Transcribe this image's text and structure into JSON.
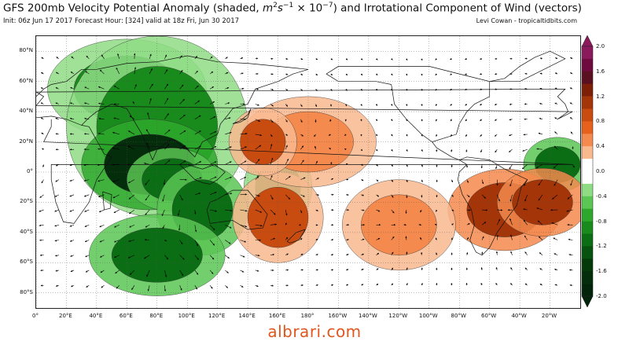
{
  "header": {
    "title_prefix": "GFS 200mb Velocity Potential Anomaly (shaded, ",
    "title_unit_base": "m",
    "title_unit_exp1": "2",
    "title_unit_mid": "s",
    "title_unit_exp2": "−1",
    "title_unit_factor": " × 10",
    "title_unit_exp3": "−7",
    "title_suffix": ") and Irrotational Component of Wind (vectors)",
    "subtitle": "Init: 06z Jun 17 2017 Forecast Hour: [324] valid at 18z Fri, Jun 30 2017",
    "credit": "Levi Cowan - tropicaltidbits.com"
  },
  "map": {
    "lat_labels": [
      "80°N",
      "60°N",
      "40°N",
      "20°N",
      "0°",
      "20°S",
      "40°S",
      "60°S",
      "80°S"
    ],
    "lat_values": [
      80,
      60,
      40,
      20,
      0,
      -20,
      -40,
      -60,
      -80
    ],
    "lon_labels": [
      "0°",
      "20°E",
      "40°E",
      "60°E",
      "80°E",
      "100°E",
      "120°E",
      "140°E",
      "160°E",
      "180°",
      "160°W",
      "140°W",
      "120°W",
      "100°W",
      "80°W",
      "60°W",
      "40°W",
      "20°W"
    ],
    "lon_values": [
      0,
      20,
      40,
      60,
      80,
      100,
      120,
      140,
      160,
      180,
      200,
      220,
      240,
      260,
      280,
      300,
      320,
      340
    ],
    "lat_range": [
      -90,
      90
    ],
    "lon_range": [
      0,
      360
    ],
    "anomaly_cells": [
      {
        "lon": 60,
        "lat": 55,
        "rx": 35,
        "ry": 22,
        "level": -0.8
      },
      {
        "lon": 80,
        "lat": 30,
        "rx": 40,
        "ry": 40,
        "level": -0.8
      },
      {
        "lon": 75,
        "lat": 5,
        "rx": 30,
        "ry": 20,
        "level": -1.6
      },
      {
        "lon": 90,
        "lat": -5,
        "rx": 20,
        "ry": 14,
        "level": -1.2
      },
      {
        "lon": 110,
        "lat": -25,
        "rx": 20,
        "ry": 20,
        "level": -1.2
      },
      {
        "lon": 80,
        "lat": -55,
        "rx": 30,
        "ry": 18,
        "level": -1.0
      },
      {
        "lon": 160,
        "lat": -10,
        "rx": 15,
        "ry": 18,
        "level": -0.8
      },
      {
        "lon": 345,
        "lat": 5,
        "rx": 15,
        "ry": 12,
        "level": -1.0
      },
      {
        "lon": 310,
        "lat": -25,
        "rx": 25,
        "ry": 18,
        "level": 1.2
      },
      {
        "lon": 335,
        "lat": -20,
        "rx": 20,
        "ry": 15,
        "level": 1.0
      },
      {
        "lon": 160,
        "lat": -30,
        "rx": 20,
        "ry": 20,
        "level": 0.8
      },
      {
        "lon": 240,
        "lat": -35,
        "rx": 25,
        "ry": 20,
        "level": 0.6
      },
      {
        "lon": 180,
        "lat": 20,
        "rx": 30,
        "ry": 20,
        "level": 0.5
      },
      {
        "lon": 150,
        "lat": 20,
        "rx": 15,
        "ry": 15,
        "level": 0.8
      }
    ]
  },
  "colorbar": {
    "labels": [
      "2.0",
      "1.6",
      "1.2",
      "0.8",
      "0.4",
      "0.0",
      "-0.4",
      "-0.8",
      "-1.2",
      "-1.6",
      "-2.0"
    ],
    "values": [
      2.0,
      1.6,
      1.2,
      0.8,
      0.4,
      0.0,
      -0.4,
      -0.8,
      -1.2,
      -1.6,
      -2.0
    ],
    "positive_colors": [
      "#fde2cf",
      "#f9b98f",
      "#f48a4e",
      "#e6611c",
      "#c84b0f",
      "#a43509",
      "#7d1f07",
      "#5a1020",
      "#6e0a3e",
      "#8a1a5c"
    ],
    "negative_colors": [
      "#c8efc4",
      "#8fdc85",
      "#5bc653",
      "#2ea82c",
      "#198a1c",
      "#0b6d14",
      "#06520e",
      "#043a09",
      "#032d0b",
      "#02240a"
    ]
  },
  "watermark": "albrari.com"
}
